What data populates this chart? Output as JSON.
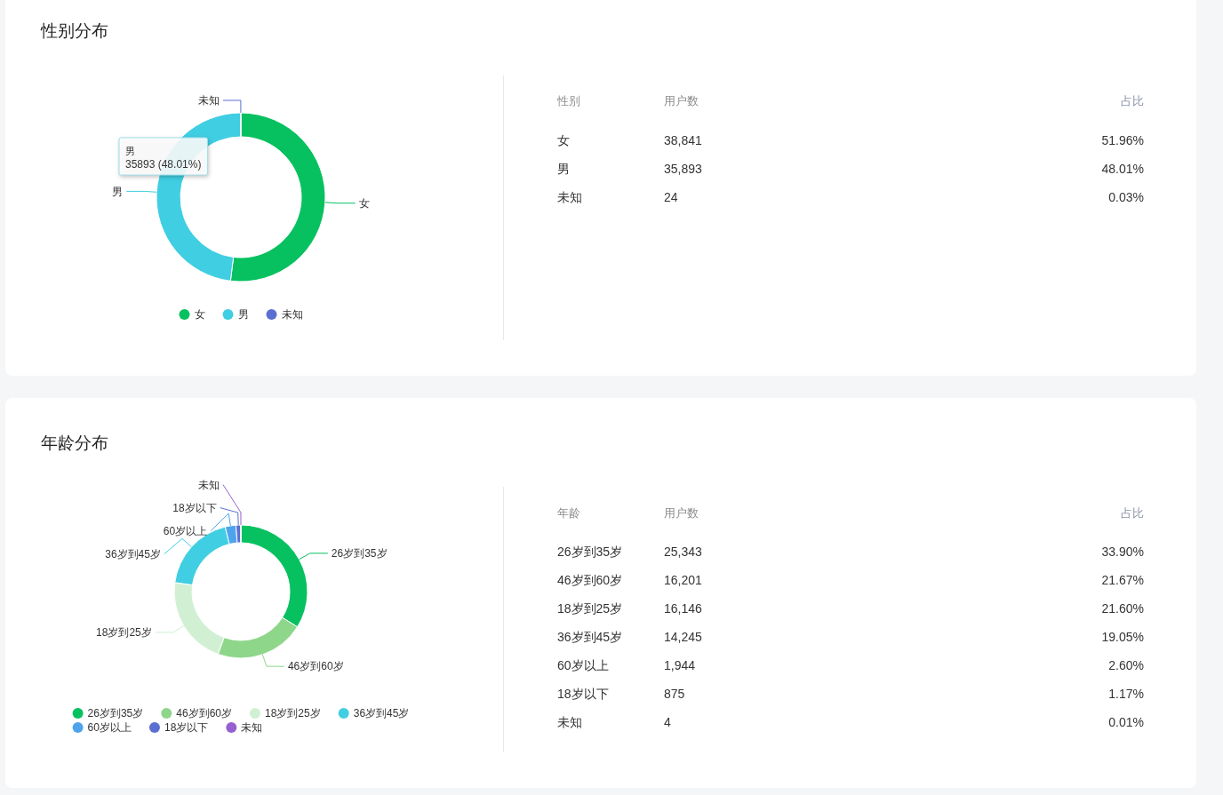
{
  "chart_data": [
    {
      "type": "donut",
      "title": "性别分布",
      "categories": [
        "女",
        "男",
        "未知"
      ],
      "values": [
        51.96,
        48.01,
        0.03
      ],
      "colors": [
        "#07c160",
        "#40cee2",
        "#5b6fd0"
      ],
      "legend": "bottom",
      "annotations": [
        "男",
        "35893 (48.01%)"
      ]
    },
    {
      "type": "other",
      "annotations": [
        "性别",
        "用户数",
        "占比",
        "女",
        "38,841",
        "51.96%",
        "男",
        "35,893",
        "48.01%",
        "未知",
        "24",
        "0.03%"
      ]
    },
    {
      "type": "donut",
      "title": "年龄分布",
      "categories": [
        "26岁到35岁",
        "46岁到60岁",
        "18岁到25岁",
        "36岁到45岁",
        "60岁以上",
        "18岁以下",
        "未知"
      ],
      "values": [
        33.9,
        21.67,
        21.6,
        19.05,
        2.6,
        1.17,
        0.01
      ],
      "colors": [
        "#07c160",
        "#8ed68a",
        "#d1f0d3",
        "#40cee2",
        "#4fa3ec",
        "#5b6fd0",
        "#9660d0"
      ],
      "legend": "bottom"
    },
    {
      "type": "other",
      "annotations": [
        "年龄",
        "用户数",
        "占比",
        "26岁到35岁",
        "25,343",
        "33.90%",
        "46岁到60岁",
        "16,201",
        "21.67%",
        "18岁到25岁",
        "16,146",
        "21.60%",
        "36岁到45岁",
        "14,245",
        "19.05%",
        "60岁以上",
        "1,944",
        "2.60%",
        "18岁以下",
        "875",
        "1.17%",
        "未知",
        "4",
        "0.01%"
      ]
    }
  ]
}
